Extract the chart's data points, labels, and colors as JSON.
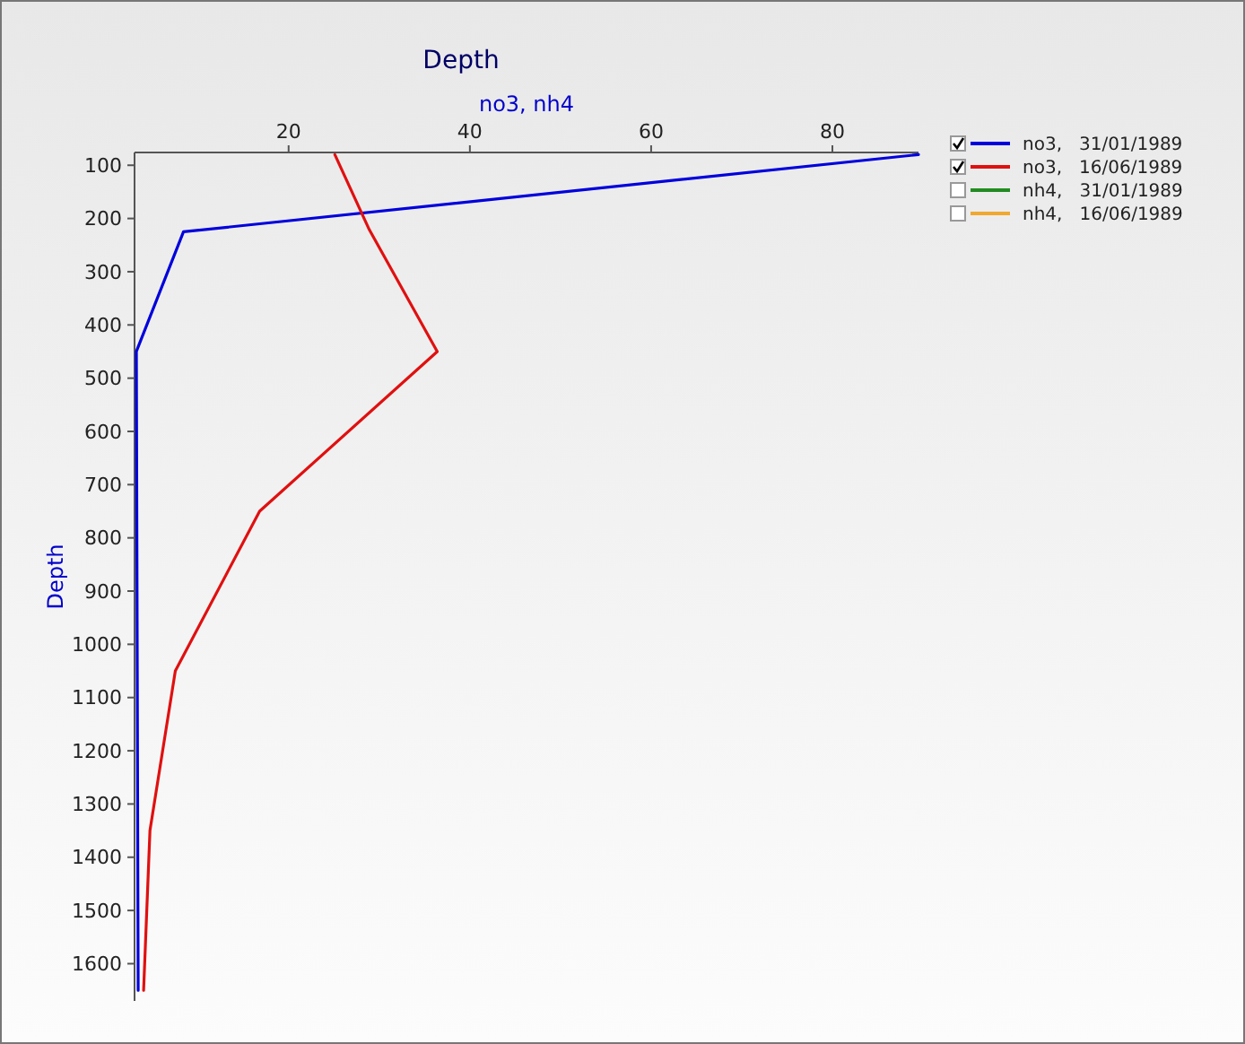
{
  "chart_data": {
    "type": "line",
    "title": "Depth",
    "xlabel": "no3, nh4",
    "ylabel": "Depth",
    "xlim": [
      3,
      89.5
    ],
    "xticks": [
      20,
      40,
      60,
      80
    ],
    "ylim": [
      1670,
      76
    ],
    "yticks": [
      100,
      200,
      300,
      400,
      500,
      600,
      700,
      800,
      900,
      1000,
      1100,
      1200,
      1300,
      1400,
      1500,
      1600
    ],
    "legend": "top right",
    "grid": false,
    "marker": "none",
    "line_style": "solid",
    "series": [
      {
        "name": "no3,   31/01/1989",
        "color": "#0000dd",
        "x": [
          89.5,
          8.4,
          3.2,
          3.3,
          3.4
        ],
        "values": [
          80,
          225,
          450,
          1050,
          1650
        ]
      },
      {
        "name": "no3,   16/06/1989",
        "color": "#e01010",
        "x": [
          25.1,
          28.9,
          36.4,
          16.8,
          7.5,
          4.7,
          4.0
        ],
        "values": [
          80,
          221,
          450,
          750,
          1050,
          1350,
          1650
        ]
      },
      {
        "name": "nh4,   31/01/1989",
        "color": "#228b22"
      },
      {
        "name": "nh4,   16/06/1989",
        "color": "#f0a830"
      }
    ]
  }
}
